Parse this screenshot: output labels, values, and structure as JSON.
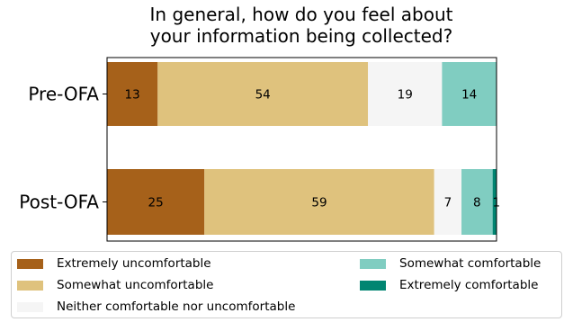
{
  "chart_data": {
    "type": "bar",
    "orientation": "horizontal",
    "stacked": true,
    "title": "In general, how do you feel about your information being collected?",
    "title_lines": [
      "In general, how do you feel about",
      "your information being collected?"
    ],
    "categories": [
      "Pre-OFA",
      "Post-OFA"
    ],
    "xlim": [
      0,
      100
    ],
    "grid": false,
    "legend_position": "bottom",
    "series": [
      {
        "name": "Extremely uncomfortable",
        "color": "#a6611a",
        "values": [
          13,
          25
        ],
        "labels": [
          "13",
          "25"
        ]
      },
      {
        "name": "Somewhat uncomfortable",
        "color": "#dfc27d",
        "values": [
          54,
          59
        ],
        "labels": [
          "54",
          "59"
        ]
      },
      {
        "name": "Neither comfortable nor uncomfortable",
        "color": "#f5f5f5",
        "values": [
          19,
          7
        ],
        "labels": [
          "19",
          "7"
        ]
      },
      {
        "name": "Somewhat comfortable",
        "color": "#80cdc1",
        "values": [
          14,
          8
        ],
        "labels": [
          "14",
          "8"
        ]
      },
      {
        "name": "Extremely comfortable",
        "color": "#018571",
        "values": [
          0,
          1
        ],
        "labels": [
          "",
          "1"
        ]
      }
    ]
  }
}
